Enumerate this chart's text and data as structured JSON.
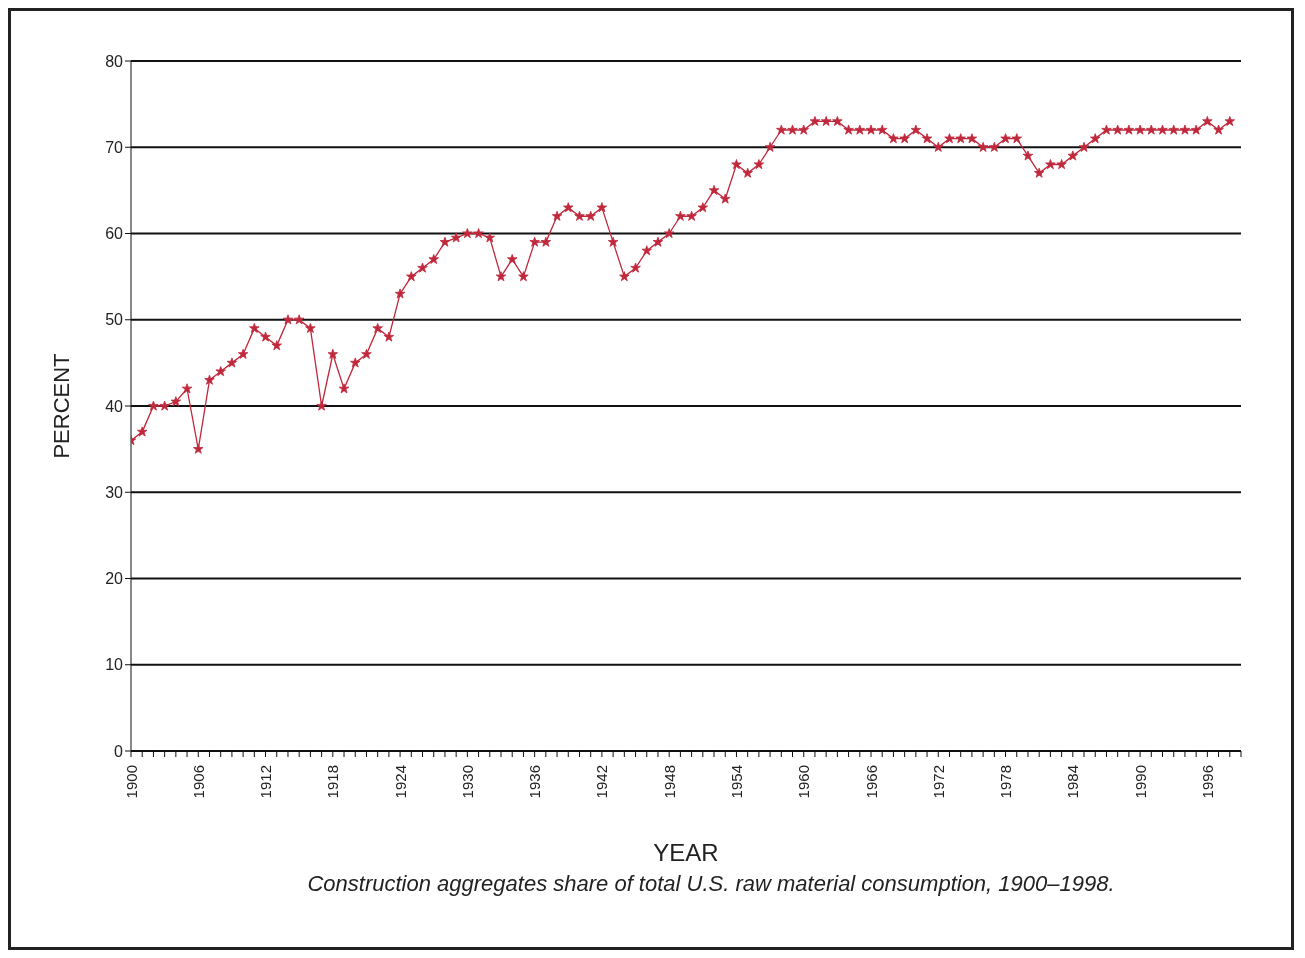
{
  "chart_data": {
    "type": "line",
    "xlabel": "YEAR",
    "ylabel": "PERCENT",
    "annotations": [
      "Construction aggregates share of total U.S. raw material consumption, 1900–1998."
    ],
    "x": [
      1900,
      1901,
      1902,
      1903,
      1904,
      1905,
      1906,
      1907,
      1908,
      1909,
      1910,
      1911,
      1912,
      1913,
      1914,
      1915,
      1916,
      1917,
      1918,
      1919,
      1920,
      1921,
      1922,
      1923,
      1924,
      1925,
      1926,
      1927,
      1928,
      1929,
      1930,
      1931,
      1932,
      1933,
      1934,
      1935,
      1936,
      1937,
      1938,
      1939,
      1940,
      1941,
      1942,
      1943,
      1944,
      1945,
      1946,
      1947,
      1948,
      1949,
      1950,
      1951,
      1952,
      1953,
      1954,
      1955,
      1956,
      1957,
      1958,
      1959,
      1960,
      1961,
      1962,
      1963,
      1964,
      1965,
      1966,
      1967,
      1968,
      1969,
      1970,
      1971,
      1972,
      1973,
      1974,
      1975,
      1976,
      1977,
      1978,
      1979,
      1980,
      1981,
      1982,
      1983,
      1984,
      1985,
      1986,
      1987,
      1988,
      1989,
      1990,
      1991,
      1992,
      1993,
      1994,
      1995,
      1996,
      1997,
      1998
    ],
    "series": [
      {
        "color": "#c0283c",
        "values": [
          36,
          37,
          40,
          40,
          40.5,
          42,
          35,
          43,
          44,
          45,
          46,
          49,
          48,
          47,
          50,
          50,
          49,
          40,
          46,
          42,
          45,
          46,
          49,
          48,
          53,
          55,
          56,
          57,
          59,
          59.5,
          60,
          60,
          59.5,
          55,
          57,
          55,
          59,
          59,
          62,
          63,
          62,
          62,
          63,
          59,
          55,
          56,
          58,
          59,
          60,
          62,
          62,
          63,
          65,
          64,
          68,
          67,
          68,
          70,
          72,
          72,
          72,
          73,
          73,
          73,
          72,
          72,
          72,
          72,
          71,
          71,
          72,
          71,
          70,
          71,
          71,
          71,
          70,
          70,
          71,
          71,
          69,
          67,
          68,
          68,
          69,
          70,
          71,
          72,
          72,
          72,
          72,
          72,
          72,
          72,
          72,
          72,
          73,
          72,
          73
        ]
      }
    ],
    "xlim": [
      1900,
      1999
    ],
    "xticks": [
      1900,
      1906,
      1912,
      1918,
      1924,
      1930,
      1936,
      1942,
      1948,
      1954,
      1960,
      1966,
      1972,
      1978,
      1984,
      1990,
      1996
    ],
    "ylim": [
      0,
      80
    ],
    "yticks": [
      0,
      10,
      20,
      30,
      40,
      50,
      60,
      70,
      80
    ],
    "grid": "y",
    "marker": "star",
    "line_style": "solid",
    "legend": false
  }
}
